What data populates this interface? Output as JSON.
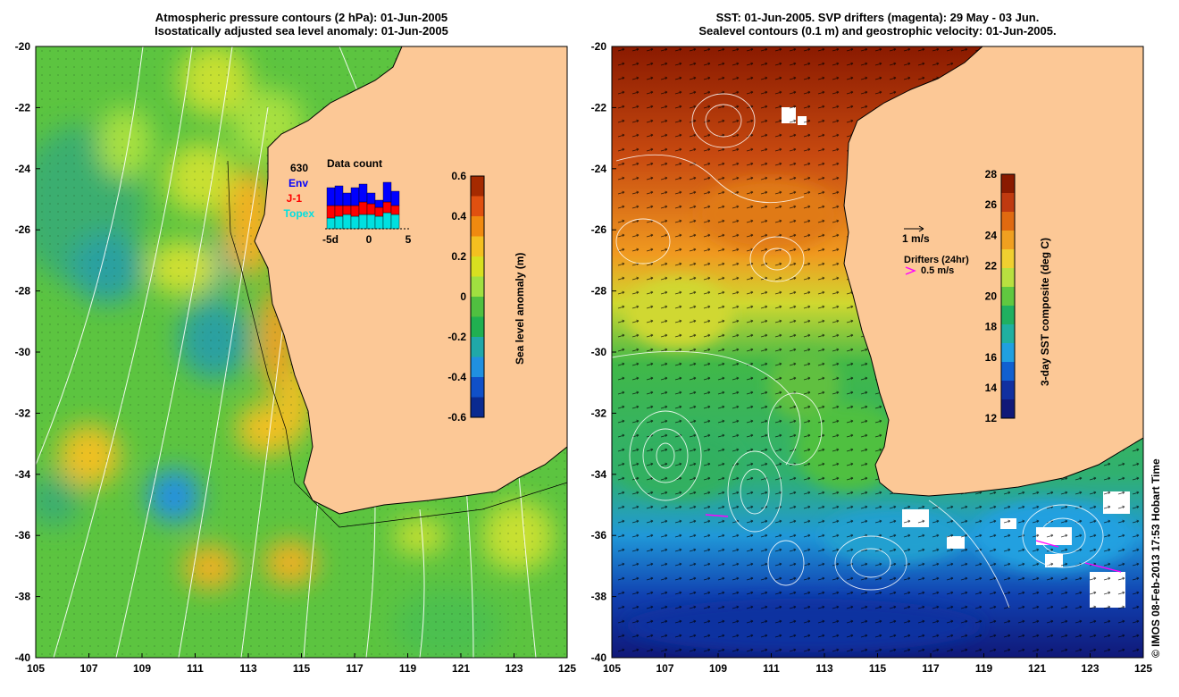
{
  "left_panel": {
    "title_line1": "Atmospheric pressure contours (2 hPa): 01-Jun-2005",
    "title_line2": "Isostatically adjusted sea level anomaly: 01-Jun-2005",
    "colorbar": {
      "label": "Sea level anomaly (m)",
      "ticks": [
        "0.6",
        "0.4",
        "0.2",
        "0",
        "-0.2",
        "-0.4",
        "-0.6"
      ],
      "colors": [
        "#a52a00",
        "#e05010",
        "#f08a10",
        "#f4c020",
        "#d8e020",
        "#a0e040",
        "#50c040",
        "#20b050",
        "#20a8a8",
        "#2090e0",
        "#1050c8",
        "#0a2a90"
      ]
    },
    "data_count": {
      "title": "Data count",
      "count": "630",
      "legend": [
        {
          "label": "Env",
          "color": "#0000ff"
        },
        {
          "label": "J-1",
          "color": "#ff0000"
        },
        {
          "label": "Topex",
          "color": "#00e0e0"
        }
      ],
      "x_ticks": [
        "-5d",
        "0",
        "5"
      ]
    }
  },
  "right_panel": {
    "title_line1": "SST: 01-Jun-2005. SVP drifters (magenta): 29 May - 03 Jun.",
    "title_line2": "Sealevel contours (0.1 m) and geostrophic velocity: 01-Jun-2005.",
    "colorbar": {
      "label": "3-day SST composite (deg C)",
      "ticks": [
        "28",
        "26",
        "24",
        "22",
        "20",
        "18",
        "16",
        "14",
        "12"
      ],
      "colors": [
        "#8a1a00",
        "#c03a10",
        "#e06a10",
        "#f0a020",
        "#f0d030",
        "#b8e040",
        "#60c840",
        "#20b060",
        "#20b0a0",
        "#20a0e0",
        "#1060d0",
        "#1030a0",
        "#101878"
      ]
    },
    "velocity_scale": "1 m/s",
    "drifters_label": "Drifters (24hr)",
    "drifters_speed": "0.5 m/s"
  },
  "axes": {
    "y_ticks": [
      "-20",
      "-22",
      "-24",
      "-26",
      "-28",
      "-30",
      "-32",
      "-34",
      "-36",
      "-38",
      "-40"
    ],
    "x_ticks": [
      "105",
      "107",
      "109",
      "111",
      "113",
      "115",
      "117",
      "119",
      "121",
      "123",
      "125"
    ]
  },
  "credit": "© IMOS 08-Feb-2013 17:53 Hobart Time",
  "colors": {
    "land": "#fcc896",
    "contour": "#ffffff",
    "drifter": "#ff00ff"
  }
}
